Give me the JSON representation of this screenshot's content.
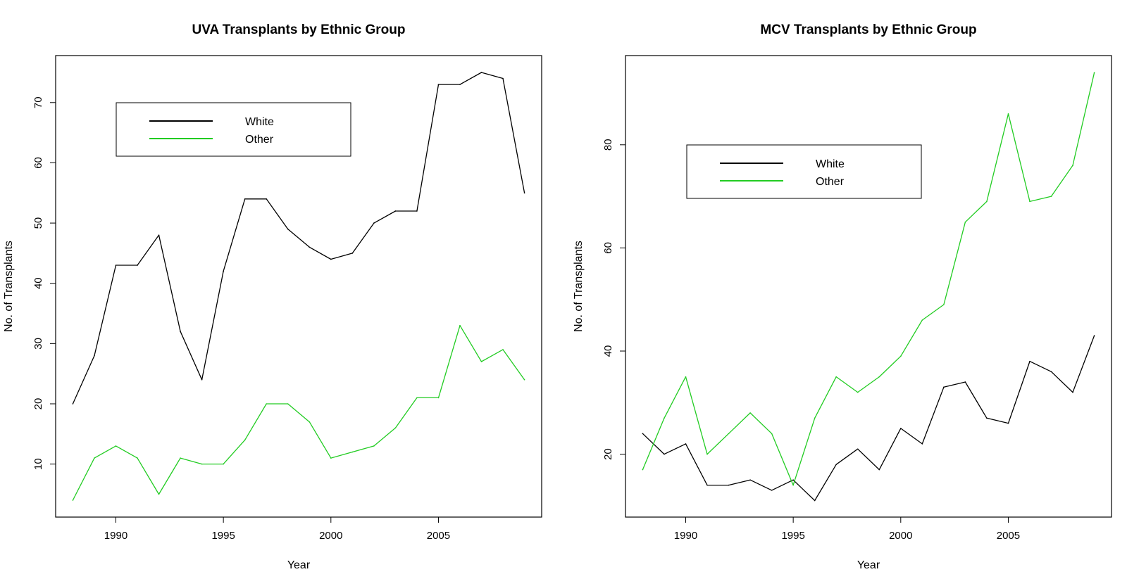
{
  "chart_data": [
    {
      "type": "line",
      "title": "UVA Transplants by Ethnic Group",
      "xlabel": "Year",
      "ylabel": "No. of Transplants",
      "xlim": [
        1987.2,
        2009.8
      ],
      "ylim": [
        1.2,
        77.8
      ],
      "xticks": [
        1990,
        1995,
        2000,
        2005
      ],
      "yticks": [
        10,
        20,
        30,
        40,
        50,
        60,
        70
      ],
      "x": [
        1988,
        1989,
        1990,
        1991,
        1992,
        1993,
        1994,
        1995,
        1996,
        1997,
        1998,
        1999,
        2000,
        2001,
        2002,
        2003,
        2004,
        2005,
        2006,
        2007,
        2008,
        2009
      ],
      "series": [
        {
          "name": "White",
          "color": "#000000",
          "values": [
            20,
            28,
            43,
            43,
            48,
            32,
            24,
            42,
            54,
            54,
            49,
            46,
            44,
            45,
            50,
            52,
            52,
            73,
            73,
            75,
            74,
            55
          ]
        },
        {
          "name": "Other",
          "color": "#22cc22",
          "values": [
            4,
            11,
            13,
            11,
            5,
            11,
            10,
            10,
            14,
            20,
            20,
            17,
            11,
            12,
            13,
            16,
            21,
            21,
            33,
            27,
            29,
            24
          ]
        }
      ],
      "legend": "top-left",
      "grid": false
    },
    {
      "type": "line",
      "title": "MCV Transplants by Ethnic Group",
      "xlabel": "Year",
      "ylabel": "No. of Transplants",
      "xlim": [
        1987.2,
        2009.8
      ],
      "ylim": [
        7.8,
        97.3
      ],
      "xticks": [
        1990,
        1995,
        2000,
        2005
      ],
      "yticks": [
        20,
        40,
        60,
        80
      ],
      "x": [
        1988,
        1989,
        1990,
        1991,
        1992,
        1993,
        1994,
        1995,
        1996,
        1997,
        1998,
        1999,
        2000,
        2001,
        2002,
        2003,
        2004,
        2005,
        2006,
        2007,
        2008,
        2009
      ],
      "series": [
        {
          "name": "White",
          "color": "#000000",
          "values": [
            24,
            20,
            22,
            14,
            14,
            15,
            13,
            15,
            11,
            18,
            21,
            17,
            25,
            22,
            33,
            34,
            27,
            26,
            38,
            36,
            32,
            43
          ]
        },
        {
          "name": "Other",
          "color": "#22cc22",
          "values": [
            17,
            27,
            35,
            20,
            24,
            28,
            24,
            14,
            27,
            35,
            32,
            35,
            39,
            46,
            49,
            65,
            69,
            86,
            69,
            70,
            76,
            94
          ]
        }
      ],
      "legend": "top-left",
      "grid": false
    }
  ]
}
